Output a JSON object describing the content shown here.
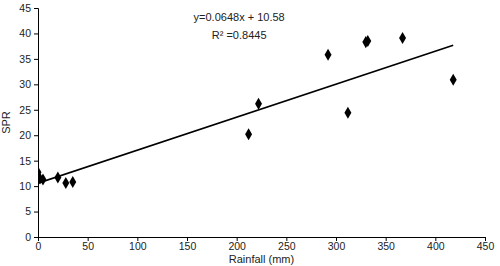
{
  "chart_data": {
    "type": "scatter",
    "x_label": "Rainfall (mm)",
    "y_label": "SPR",
    "annotations": [
      "y=0.0648x + 10.58",
      "R² =0.8445"
    ],
    "series": [
      {
        "type": "scatter",
        "marker": "diamond",
        "color": "#000000",
        "x": [
          0,
          2,
          5,
          20,
          28,
          35,
          212,
          222,
          292,
          312,
          330,
          332,
          367,
          418
        ],
        "values": [
          12.7,
          11.5,
          11.3,
          11.7,
          10.6,
          10.8,
          20.2,
          26.2,
          35.8,
          24.4,
          38.3,
          38.5,
          39.1,
          30.9
        ]
      },
      {
        "type": "line",
        "line_style": "solid",
        "color": "#000000",
        "x": [
          0,
          418
        ],
        "values": [
          10.58,
          37.67
        ]
      }
    ],
    "xlim": [
      0,
      450
    ],
    "xticks": [
      0,
      50,
      100,
      150,
      200,
      250,
      300,
      350,
      400,
      450
    ],
    "ylim": [
      0,
      45
    ],
    "yticks": [
      0,
      5,
      10,
      15,
      20,
      25,
      30,
      35,
      40,
      45
    ],
    "grid": false
  }
}
